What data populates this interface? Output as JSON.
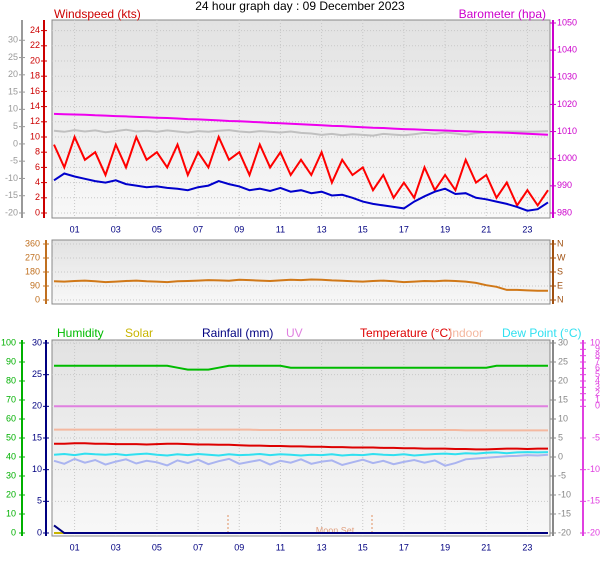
{
  "chart_data": [
    {
      "type": "line",
      "title": "24 hour graph day : 09 December 2023",
      "y_label": "Windspeed (kts)",
      "y2_label": "Barometer (hpa)",
      "x": [
        0,
        0.5,
        1,
        1.5,
        2,
        2.5,
        3,
        3.5,
        4,
        4.5,
        5,
        5.5,
        6,
        6.5,
        7,
        7.5,
        8,
        8.5,
        9,
        9.5,
        10,
        10.5,
        11,
        11.5,
        12,
        12.5,
        13,
        13.5,
        14,
        14.5,
        15,
        15.5,
        16,
        16.5,
        17,
        17.5,
        18,
        18.5,
        19,
        19.5,
        20,
        20.5,
        21,
        21.5,
        22,
        22.5,
        23,
        23.5,
        24
      ],
      "xlim": [
        0,
        24
      ],
      "xticks": [
        {
          "value": 1,
          "label": "01"
        },
        {
          "value": 3,
          "label": "03"
        },
        {
          "value": 5,
          "label": "05"
        },
        {
          "value": 7,
          "label": "07"
        },
        {
          "value": 9,
          "label": "09"
        },
        {
          "value": 11,
          "label": "11"
        },
        {
          "value": 13,
          "label": "13"
        },
        {
          "value": 15,
          "label": "15"
        },
        {
          "value": 17,
          "label": "17"
        },
        {
          "value": 19,
          "label": "19"
        },
        {
          "value": 21,
          "label": "21"
        },
        {
          "value": 23,
          "label": "23"
        }
      ],
      "ylim": [
        0,
        25
      ],
      "yticks": [
        0,
        2,
        4,
        6,
        8,
        10,
        12,
        14,
        16,
        18,
        20,
        22,
        24
      ],
      "y2lim": [
        980,
        1050
      ],
      "y2ticks": [
        980,
        990,
        1000,
        1010,
        1020,
        1030,
        1040,
        1050
      ],
      "y3lim": [
        -20,
        35
      ],
      "y3ticks": [
        -20,
        -15,
        -10,
        -5,
        0,
        5,
        10,
        15,
        20,
        25,
        30
      ],
      "series": [
        {
          "color": "#c0c0c0",
          "axis": "y3",
          "values": [
            3.8,
            3.5,
            4.0,
            3.6,
            3.9,
            3.4,
            3.7,
            4.1,
            3.6,
            3.8,
            3.5,
            3.9,
            3.6,
            3.3,
            3.7,
            3.5,
            3.8,
            4.0,
            3.6,
            3.4,
            3.7,
            3.5,
            3.3,
            3.6,
            3.2,
            3.0,
            2.6,
            2.9,
            2.5,
            2.8,
            2.6,
            2.4,
            2.9,
            2.7,
            2.5,
            2.8,
            3.2,
            2.9,
            3.3,
            3.0,
            2.6,
            3.1,
            3.4,
            3.5,
            3.6,
            3.6,
            3.5,
            3.6,
            3.7
          ]
        },
        {
          "color": "#ee00ee",
          "axis": "y2",
          "values": [
            1016.5,
            1016.4,
            1016.3,
            1016.2,
            1016.0,
            1015.9,
            1015.7,
            1015.6,
            1015.4,
            1015.3,
            1015.1,
            1015.0,
            1014.8,
            1014.6,
            1014.5,
            1014.3,
            1014.1,
            1013.9,
            1013.8,
            1013.6,
            1013.4,
            1013.2,
            1013.1,
            1012.9,
            1012.7,
            1012.5,
            1012.3,
            1012.1,
            1012.0,
            1011.8,
            1011.6,
            1011.4,
            1011.3,
            1011.1,
            1010.9,
            1010.8,
            1010.6,
            1010.5,
            1010.4,
            1010.2,
            1010.1,
            1010.0,
            1009.8,
            1009.7,
            1009.6,
            1009.4,
            1009.2,
            1009.0,
            1008.8
          ]
        },
        {
          "color": "#ff0000",
          "axis": "y",
          "values": [
            9,
            6,
            10,
            7,
            8,
            5,
            9,
            6,
            10,
            7,
            8,
            6,
            9,
            5,
            8,
            6,
            10,
            7,
            8,
            5,
            9,
            6,
            8,
            5,
            7,
            5,
            8,
            4,
            7,
            5,
            6,
            3,
            5,
            2,
            4,
            2,
            6,
            3,
            5,
            3,
            7,
            4,
            5,
            2,
            4,
            1,
            3,
            1,
            3
          ]
        },
        {
          "color": "#0000cc",
          "axis": "y",
          "values": [
            4.3,
            5.2,
            4.8,
            4.5,
            4.2,
            4.0,
            4.3,
            3.8,
            3.6,
            3.4,
            3.5,
            3.3,
            3.2,
            3.0,
            3.4,
            3.6,
            4.2,
            3.8,
            3.5,
            3.0,
            3.2,
            2.9,
            3.3,
            2.8,
            3.0,
            2.6,
            2.8,
            2.3,
            2.4,
            2.0,
            1.5,
            1.2,
            1.0,
            0.8,
            0.6,
            1.5,
            2.2,
            2.8,
            3.2,
            2.5,
            2.6,
            2.0,
            1.8,
            1.5,
            1.2,
            0.8,
            0.3,
            0.5,
            1.4
          ]
        }
      ]
    },
    {
      "type": "line",
      "x": [
        0,
        0.5,
        1,
        1.5,
        2,
        2.5,
        3,
        3.5,
        4,
        4.5,
        5,
        5.5,
        6,
        6.5,
        7,
        7.5,
        8,
        8.5,
        9,
        9.5,
        10,
        10.5,
        11,
        11.5,
        12,
        12.5,
        13,
        13.5,
        14,
        14.5,
        15,
        15.5,
        16,
        16.5,
        17,
        17.5,
        18,
        18.5,
        19,
        19.5,
        20,
        20.5,
        21,
        21.5,
        22,
        22.5,
        23,
        23.5,
        24
      ],
      "xlim": [
        0,
        24
      ],
      "ylim": [
        0,
        360
      ],
      "yticks": [
        0,
        90,
        180,
        270,
        360
      ],
      "y2lim": [
        0,
        360
      ],
      "y2ticks": [
        {
          "value": 0,
          "label": "N"
        },
        {
          "value": 90,
          "label": "E"
        },
        {
          "value": 180,
          "label": "S"
        },
        {
          "value": 270,
          "label": "W"
        },
        {
          "value": 360,
          "label": "N"
        }
      ],
      "series": [
        {
          "color": "#d07818",
          "axis": "y",
          "values": [
            120,
            118,
            122,
            125,
            120,
            115,
            118,
            122,
            125,
            120,
            118,
            115,
            120,
            122,
            125,
            128,
            126,
            124,
            130,
            128,
            125,
            122,
            126,
            130,
            128,
            132,
            130,
            126,
            124,
            120,
            118,
            122,
            125,
            120,
            115,
            118,
            122,
            120,
            125,
            122,
            118,
            110,
            95,
            85,
            65,
            65,
            62,
            60,
            60
          ]
        }
      ]
    },
    {
      "type": "line",
      "annotation": "Moon Set",
      "x": [
        0,
        0.5,
        1,
        1.5,
        2,
        2.5,
        3,
        3.5,
        4,
        4.5,
        5,
        5.5,
        6,
        6.5,
        7,
        7.5,
        8,
        8.5,
        9,
        9.5,
        10,
        10.5,
        11,
        11.5,
        12,
        12.5,
        13,
        13.5,
        14,
        14.5,
        15,
        15.5,
        16,
        16.5,
        17,
        17.5,
        18,
        18.5,
        19,
        19.5,
        20,
        20.5,
        21,
        21.5,
        22,
        22.5,
        23,
        23.5,
        24
      ],
      "xlim": [
        0,
        24
      ],
      "xticks": [
        {
          "value": 1,
          "label": "01"
        },
        {
          "value": 3,
          "label": "03"
        },
        {
          "value": 5,
          "label": "05"
        },
        {
          "value": 7,
          "label": "07"
        },
        {
          "value": 9,
          "label": "09"
        },
        {
          "value": 11,
          "label": "11"
        },
        {
          "value": 13,
          "label": "13"
        },
        {
          "value": 15,
          "label": "15"
        },
        {
          "value": 17,
          "label": "17"
        },
        {
          "value": 19,
          "label": "19"
        },
        {
          "value": 21,
          "label": "21"
        },
        {
          "value": 23,
          "label": "23"
        }
      ],
      "ylim": [
        0,
        30
      ],
      "yticks": [
        0,
        5,
        10,
        15,
        20,
        25,
        30
      ],
      "y2lim": [
        -20,
        30
      ],
      "y2ticks": [
        -20,
        -15,
        -10,
        -5,
        0,
        5,
        10,
        15,
        20,
        25,
        30
      ],
      "y3lim": [
        0,
        100
      ],
      "y3ticks": [
        0,
        10,
        20,
        30,
        40,
        50,
        60,
        70,
        80,
        90,
        100
      ],
      "y4lim": [
        -20,
        10
      ],
      "y4ticks": [
        -20,
        -15,
        -10,
        -5,
        0,
        1,
        2,
        3,
        4,
        5,
        6,
        7,
        8,
        9,
        10
      ],
      "series": [
        {
          "name": "Humidity",
          "color": "#00bb00",
          "axis": "y3",
          "values": [
            88,
            88,
            88,
            88,
            88,
            88,
            88,
            88,
            88,
            88,
            88,
            88,
            87,
            86,
            86,
            86,
            87,
            88,
            88,
            88,
            88,
            88,
            88,
            87,
            87,
            87,
            87,
            87,
            87,
            87,
            87,
            87,
            87,
            87,
            87,
            87,
            87,
            87,
            87,
            87,
            87,
            87,
            87,
            88,
            88,
            88,
            88,
            88,
            88
          ]
        },
        {
          "name": "Solar",
          "color": "#c8b400",
          "axis": "y",
          "values": [
            0,
            0,
            0,
            0,
            0,
            0,
            0,
            0,
            0,
            0,
            0,
            0,
            0,
            0,
            0,
            0,
            0,
            0,
            0,
            0,
            0,
            0,
            0,
            0,
            0,
            0,
            0,
            0,
            0,
            0,
            0,
            0,
            0,
            0,
            0,
            0,
            0,
            0,
            0,
            0,
            0,
            0,
            0,
            0,
            0,
            0,
            0,
            0,
            0
          ]
        },
        {
          "name": "Rainfall (mm)",
          "color": "#000080",
          "axis": "y",
          "values": [
            1.2,
            0,
            0,
            0,
            0,
            0,
            0,
            0,
            0,
            0,
            0,
            0,
            0,
            0,
            0,
            0,
            0,
            0,
            0,
            0,
            0,
            0,
            0,
            0,
            0,
            0,
            0,
            0,
            0,
            0,
            0,
            0,
            0,
            0,
            0,
            0,
            0,
            0,
            0,
            0,
            0,
            0,
            0,
            0,
            0,
            0,
            0,
            0,
            0
          ]
        },
        {
          "name": "UV",
          "color": "#e080e0",
          "axis": "y4",
          "values": [
            0,
            0,
            0,
            0,
            0,
            0,
            0,
            0,
            0,
            0,
            0,
            0,
            0,
            0,
            0,
            0,
            0,
            0,
            0,
            0,
            0,
            0,
            0,
            0,
            0,
            0,
            0,
            0,
            0,
            0,
            0,
            0,
            0,
            0,
            0,
            0,
            0,
            0,
            0,
            0,
            0,
            0,
            0,
            0,
            0,
            0,
            0,
            0,
            0
          ]
        },
        {
          "name": "Temperature (°C)",
          "color": "#dd0000",
          "axis": "y2",
          "values": [
            3.5,
            3.5,
            3.6,
            3.6,
            3.5,
            3.5,
            3.4,
            3.4,
            3.4,
            3.3,
            3.4,
            3.5,
            3.5,
            3.4,
            3.3,
            3.3,
            3.2,
            3.2,
            3.1,
            3.0,
            3.0,
            2.9,
            2.9,
            2.8,
            2.8,
            2.7,
            2.7,
            2.6,
            2.6,
            2.5,
            2.5,
            2.5,
            2.4,
            2.4,
            2.3,
            2.3,
            2.2,
            2.2,
            2.2,
            2.1,
            2.1,
            2.0,
            2.0,
            2.1,
            2.2,
            2.2,
            2.1,
            2.2,
            2.2
          ]
        },
        {
          "name": "Indoor",
          "color": "#f4b8a0",
          "axis": "y2",
          "values": [
            7.2,
            7.2,
            7.2,
            7.2,
            7.2,
            7.2,
            7.2,
            7.2,
            7.2,
            7.2,
            7.2,
            7.2,
            7.2,
            7.2,
            7.2,
            7.2,
            7.2,
            7.2,
            7.2,
            7.2,
            7.1,
            7.1,
            7.1,
            7.1,
            7.1,
            7.1,
            7.1,
            7.1,
            7.1,
            7.1,
            7.1,
            7.1,
            7.1,
            7.1,
            7.1,
            7.1,
            7.1,
            7.1,
            7.1,
            7.1,
            7.0,
            7.0,
            7.0,
            7.0,
            7.0,
            7.0,
            7.0,
            7.0,
            7.0
          ]
        },
        {
          "color": "#aab4f0",
          "axis": "y2",
          "values": [
            -1.0,
            -1.8,
            -0.5,
            -1.5,
            -0.8,
            -2.0,
            -1.2,
            -0.6,
            -1.7,
            -1.0,
            -1.4,
            -2.2,
            -0.9,
            -1.6,
            -0.7,
            -1.9,
            -1.1,
            -0.5,
            -1.8,
            -1.3,
            -0.8,
            -2.0,
            -1.0,
            -1.5,
            -0.6,
            -1.8,
            -1.2,
            -0.9,
            -2.1,
            -1.4,
            -0.7,
            -1.6,
            -1.0,
            -1.9,
            -1.3,
            -0.8,
            -1.5,
            -0.9,
            -2.3,
            -1.6,
            -0.6,
            -0.4,
            -0.2,
            0.0,
            0.2,
            0.3,
            0.5,
            0.4,
            0.6
          ]
        },
        {
          "name": "Dew Point (°C)",
          "color": "#30e0f0",
          "axis": "y2",
          "values": [
            0.6,
            0.8,
            0.5,
            0.9,
            0.7,
            0.6,
            0.8,
            0.5,
            0.7,
            0.9,
            0.6,
            0.4,
            0.7,
            0.5,
            0.8,
            0.6,
            0.4,
            0.7,
            0.5,
            0.6,
            0.8,
            0.5,
            0.7,
            0.6,
            0.4,
            0.6,
            0.5,
            0.7,
            0.4,
            0.6,
            0.5,
            0.8,
            0.6,
            0.5,
            0.7,
            0.4,
            0.6,
            0.8,
            0.9,
            0.7,
            1.0,
            0.9,
            1.1,
            1.2,
            1.0,
            1.2,
            1.3,
            1.2,
            1.3
          ]
        }
      ]
    }
  ]
}
